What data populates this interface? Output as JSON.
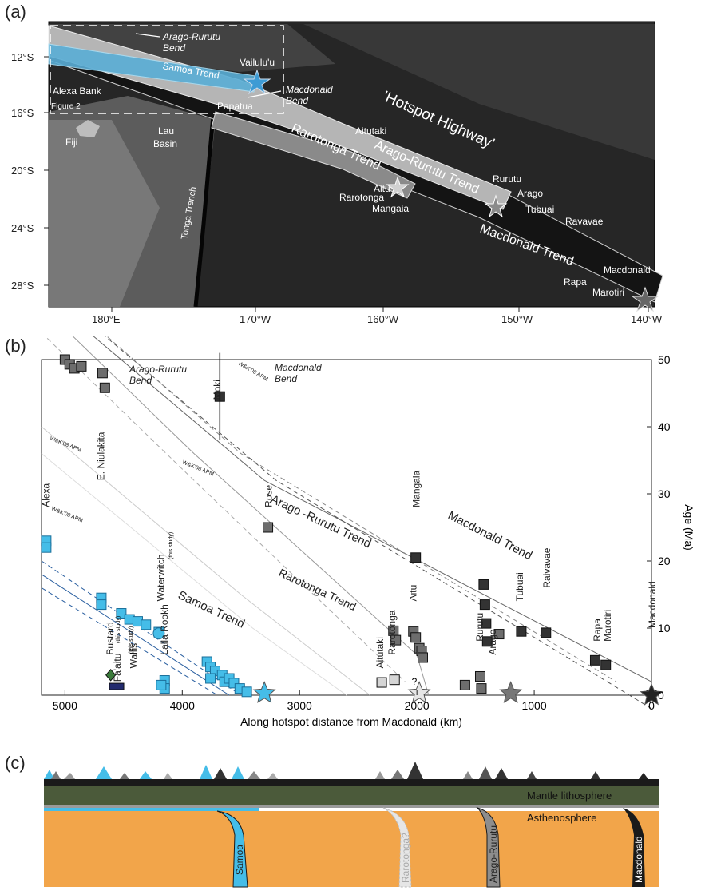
{
  "panels": {
    "a": "(a)",
    "b": "(b)",
    "c": "(c)"
  },
  "map": {
    "lat_labels": [
      "12°S",
      "16°S",
      "20°S",
      "24°S",
      "28°S"
    ],
    "lon_labels": [
      "180°E",
      "170°W",
      "160°W",
      "150°W",
      "140°W"
    ],
    "labels": {
      "arago_rurutu_bend": "Arago-Rurutu",
      "arago_rurutu_bend2": "Bend",
      "samoa_trend": "Samoa Trend",
      "vailulu": "Vailulu'u",
      "alexa_bank": "Alexa Bank",
      "figure2": "Figure 2",
      "macdonald_bend": "Macdonald",
      "macdonald_bend2": "Bend",
      "papatua": "Papatua",
      "hotspot_highway": "'Hotspot Highway'",
      "fiji": "Fiji",
      "lau_basin": "Lau",
      "lau_basin2": "Basin",
      "tonga_trench": "Tonga Trench",
      "aitutaki": "Aitutaki",
      "arago_rurutu_trend": "Arago-Rurutu Trend",
      "rarotonga_trend": "Rarotonga Trend",
      "aitu": "Aitu",
      "rarotonga": "Rarotonga",
      "mangaia": "Mangaia",
      "rurutu": "Rurutu",
      "arago": "Arago",
      "tubuai": "Tubuai",
      "ravavae": "Ravavae",
      "macdonald_trend": "Macdonald Trend",
      "macdonald": "Macdonald",
      "rapa": "Rapa",
      "marotiri": "Marotiri"
    }
  },
  "chart_data": {
    "type": "scatter",
    "xlabel": "Along hotspot distance from Macdonald (km)",
    "ylabel": "Age (Ma)",
    "xlim": [
      5200,
      0
    ],
    "ylim": [
      0,
      50
    ],
    "x_ticks": [
      5000,
      4000,
      3000,
      2000,
      1000,
      0
    ],
    "y_ticks": [
      0,
      10,
      20,
      30,
      40,
      50
    ],
    "apm_label": "W&K'08 APM",
    "trend_labels": {
      "arago_rurutu_bend": "Arago-Rurutu",
      "arago_rurutu_bend2": "Bend",
      "macdonald_bend": "Macdonald",
      "macdonald_bend2": "Bend",
      "arago_rurutu_trend": "Arago -Rurutu Trend",
      "macdonald_trend": "Macdonald Trend",
      "rarotonga_trend": "Rarotonga Trend",
      "samoa_trend": "Samoa Trend",
      "this_study": "(this study)",
      "unknown": "?"
    },
    "seamount_labels": [
      "Alexa",
      "E. Niulakita",
      "Moki",
      "Rose",
      "Waterwitch",
      "Bustard",
      "Fa'aitu",
      "Wallis",
      "Lalla Rookh",
      "Aitutaki",
      "Rarotonga",
      "Aitu",
      "Mangaia",
      "Rurutu",
      "Arago",
      "Tubuai",
      "Raivavae",
      "Rapa",
      "Marotiri",
      "Macdonald"
    ],
    "series": [
      {
        "name": "Samoa",
        "color": "#45bde8",
        "x": [
          5160,
          5160,
          4690,
          4690,
          4520,
          4450,
          4380,
          4310,
          4200,
          4150,
          4150,
          4180,
          3790,
          3760,
          3720,
          3660,
          3760,
          3640,
          3600,
          3560,
          3510,
          3450
        ],
        "y": [
          23,
          22,
          14.5,
          13.5,
          12.2,
          11.3,
          11,
          10.5,
          9.4,
          2.2,
          1,
          1.5,
          5,
          4.2,
          3.6,
          3,
          2.5,
          2,
          2.5,
          1.8,
          1,
          0.5
        ]
      },
      {
        "name": "Arago-Rurutu",
        "color": "#6d6d6d",
        "x": [
          5000,
          4960,
          4920,
          4860,
          4680,
          4660,
          3270,
          2200,
          2180,
          2030,
          2010,
          1980,
          1960,
          1950,
          1590,
          1460,
          1450,
          1300
        ],
        "y": [
          50,
          49.3,
          48.7,
          49,
          48,
          45.8,
          25,
          9.6,
          8.2,
          9.5,
          8.6,
          7,
          6.6,
          5.6,
          1.5,
          2.8,
          1,
          9.1
        ],
        "apm_center": [
          [
            5200,
            58
          ],
          [
            3000,
            30
          ],
          [
            0,
            0
          ]
        ]
      },
      {
        "name": "Macdonald",
        "color": "#333333",
        "x": [
          3680,
          2010,
          1430,
          1420,
          1410,
          1400,
          1110,
          900,
          480,
          390,
          0
        ],
        "y": [
          44.5,
          20.5,
          16.5,
          13.5,
          10.7,
          8,
          9.5,
          9.3,
          5.2,
          4.5,
          0
        ]
      },
      {
        "name": "Rarotonga",
        "color": "#d5d5d5",
        "x": [
          2300,
          2190
        ],
        "y": [
          1.9,
          2.3
        ]
      }
    ]
  },
  "cross_section": {
    "mantle_lithosphere": "Mantle lithosphere",
    "asthenosphere": "Asthenosphere",
    "plumes": [
      "Samoa",
      "Rarotonga?",
      "Arago-Rurutu",
      "Macdonald"
    ]
  }
}
